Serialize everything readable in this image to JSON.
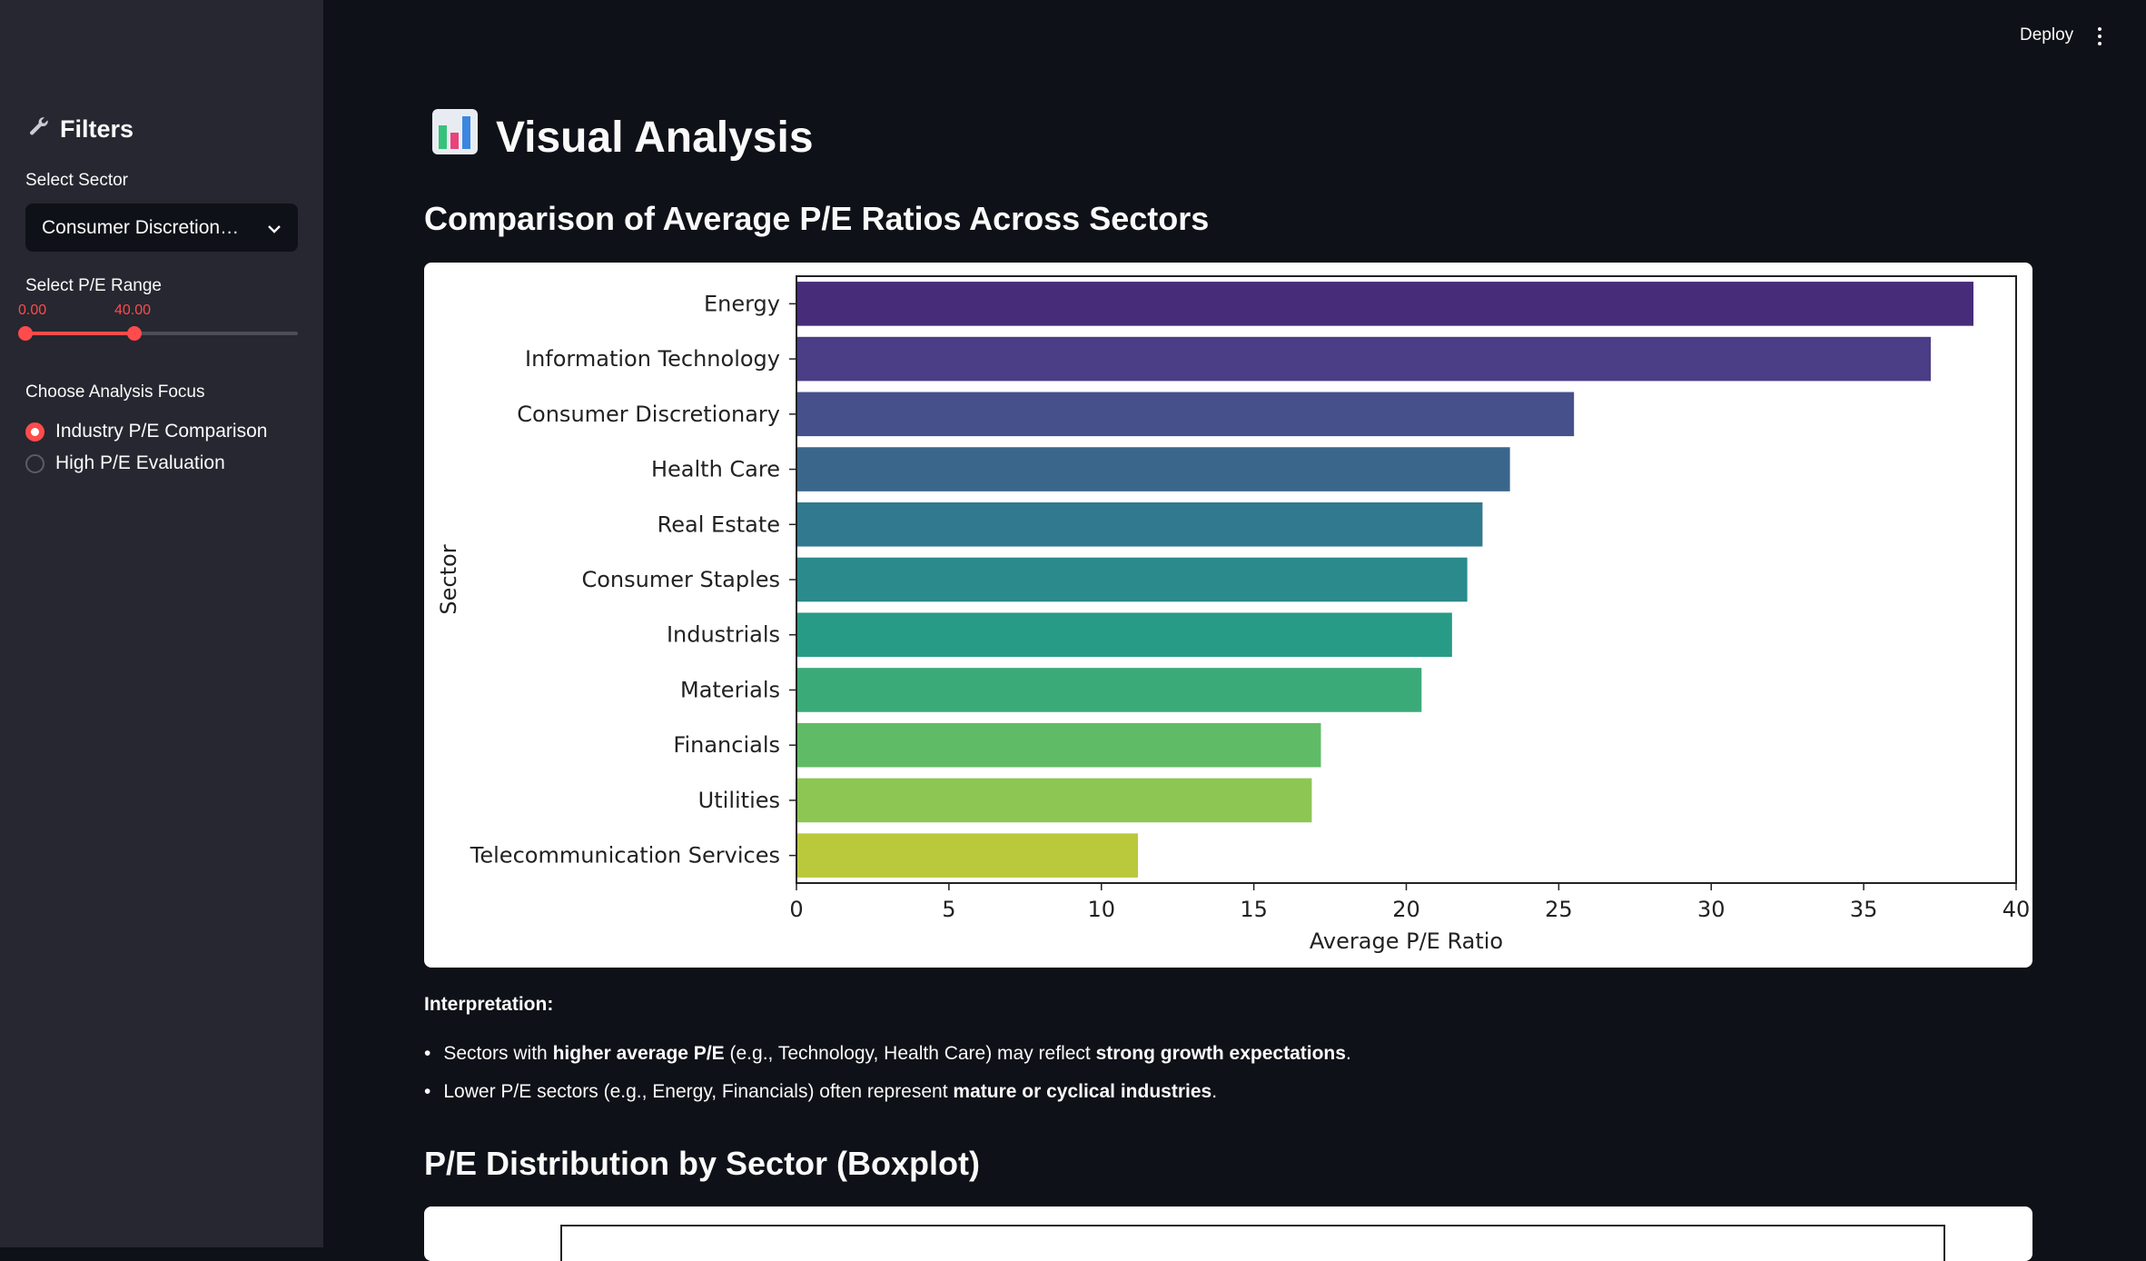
{
  "sidebar": {
    "title": "Filters",
    "sector_label": "Select Sector",
    "sector_value": "Consumer Discretion…",
    "pe_label": "Select P/E Range",
    "pe_min": "0.00",
    "pe_max": "40.00",
    "focus_label": "Choose Analysis Focus",
    "options": [
      "Industry P/E Comparison",
      "High P/E Evaluation"
    ],
    "selected_option": "Industry P/E Comparison"
  },
  "header": {
    "deploy": "Deploy"
  },
  "main": {
    "title": "Visual Analysis",
    "section1": "Comparison of Average P/E Ratios Across Sectors",
    "interp_label": "Interpretation:",
    "bullet1": {
      "a": "Sectors with ",
      "b": "higher average P/E",
      "c": " (e.g., Technology, Health Care) may reflect ",
      "d": "strong growth expectations",
      "e": "."
    },
    "bullet2": {
      "a": "Lower P/E sectors (e.g., Energy, Financials) often represent ",
      "b": "mature or cyclical industries",
      "c": "."
    },
    "section2": "P/E Distribution by Sector (Boxplot)"
  },
  "colors": {
    "accent": "#ff4b4b",
    "background": "#0e1117",
    "sidebar": "#262730"
  },
  "chart_data": {
    "type": "bar",
    "orientation": "horizontal",
    "categories": [
      "Energy",
      "Information Technology",
      "Consumer Discretionary",
      "Health Care",
      "Real Estate",
      "Consumer Staples",
      "Industrials",
      "Materials",
      "Financials",
      "Utilities",
      "Telecommunication Services"
    ],
    "values": [
      38.6,
      37.2,
      25.5,
      23.4,
      22.5,
      22.0,
      21.5,
      20.5,
      17.2,
      16.9,
      11.2
    ],
    "bar_colors": [
      "#472c7a",
      "#4b3d86",
      "#46508b",
      "#3b668c",
      "#31798e",
      "#2a8a8c",
      "#289b86",
      "#3aaa78",
      "#60bb66",
      "#8dc653",
      "#bac93b"
    ],
    "xlabel": "Average P/E Ratio",
    "ylabel": "Sector",
    "xlim": [
      0,
      40
    ],
    "xticks": [
      0,
      5,
      10,
      15,
      20,
      25,
      30,
      35,
      40
    ],
    "grid": false
  }
}
